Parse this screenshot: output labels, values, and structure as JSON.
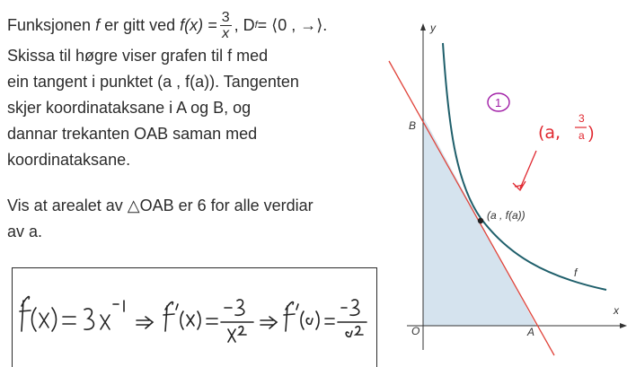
{
  "problem": {
    "line1_prefix": "Funksjonen",
    "func_letter": "f",
    "line1_mid": "er gitt ved",
    "fx": "f(x) =",
    "frac_num": "3",
    "frac_den": "x",
    "domain_text": ", D",
    "domain_sub": "f",
    "domain_val": " = ⟨0 , →⟩.",
    "para1": [
      "Skissa til høgre viser grafen til f med",
      "ein tangent i punktet (a , f(a)). Tangenten",
      "skjer koordinataksane i A og B, og",
      "dannar trekanten OAB saman med",
      "koordinataksane."
    ],
    "para2": [
      "Vis at arealet av △OAB er 6 for alle verdiar",
      "av a."
    ]
  },
  "graph": {
    "label_y": "y",
    "label_x": "x",
    "label_B": "B",
    "label_A": "A",
    "label_O": "O",
    "label_f": "f",
    "point_label": "(a , f(a))",
    "colors": {
      "tangent": "#e0433a",
      "curve": "#1f5f6b",
      "fill": "#d5e3ee",
      "annot": "#e0272f",
      "circle": "#a01ca6"
    }
  },
  "annotations": {
    "circle_num": "1",
    "point_note": "(a,",
    "note_num": "3",
    "note_den": "a",
    "note_close": ")"
  },
  "handwriting": {
    "step1": "f(x) = 3x⁻¹",
    "step2": "⇒ f'(x) = −3/x²",
    "step3": "⇒ f'(a) = −3/a²"
  }
}
